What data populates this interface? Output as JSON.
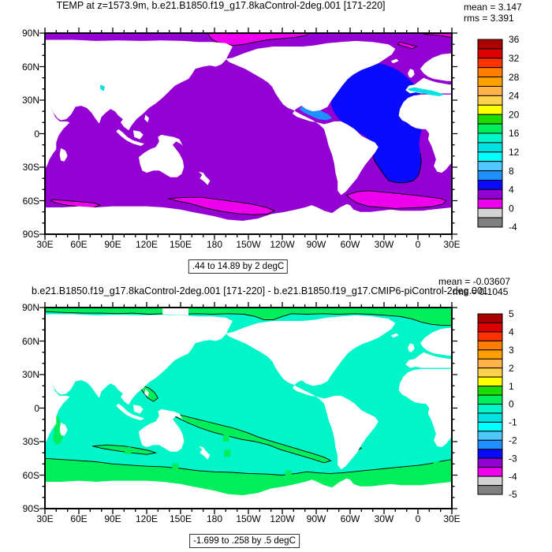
{
  "palette": [
    "#AA0000",
    "#DE0000",
    "#FF3200",
    "#FF7D00",
    "#FFA000",
    "#FFB44B",
    "#FFD24B",
    "#FFFF00",
    "#1EDC00",
    "#00EE5A",
    "#00F5C8",
    "#00E1E1",
    "#00FFFF",
    "#50C8FF",
    "#1E90FF",
    "#0A0AFF",
    "#9400D3",
    "#EE00EE",
    "#D3D3D3",
    "#808080"
  ],
  "panels": {
    "top": {
      "title": "TEMP at z=1573.9m, b.e21.B1850.f19_g17.8kaControl-2deg.001 [171-220]",
      "mean_label": "mean = 3.147",
      "rms_label": "rms = 3.391",
      "caption": ".44 to 14.89 by 2 degC",
      "x_tick_labels": [
        "30E",
        "60E",
        "90E",
        "120E",
        "150E",
        "180",
        "150W",
        "120W",
        "90W",
        "60W",
        "30W",
        "0",
        "30E"
      ],
      "y_tick_labels": [
        "90N",
        "60N",
        "30N",
        "0",
        "30S",
        "60S",
        "90S"
      ],
      "colorbar_labels": [
        "36",
        "32",
        "28",
        "24",
        "20",
        "16",
        "12",
        "8",
        "4",
        "0",
        "-4"
      ]
    },
    "bottom": {
      "title": "b.e21.B1850.f19_g17.8kaControl-2deg.001 [171-220] - b.e21.B1850.f19_g17.CMIP6-piControl-2deg.001",
      "mean_label": "mean = -0.03607",
      "rms_label": "rms = 0.1045",
      "caption": "-1.699 to .258 by .5 degC",
      "contour_label": "0",
      "x_tick_labels": [
        "30E",
        "60E",
        "90E",
        "120E",
        "150E",
        "180",
        "150W",
        "120W",
        "90W",
        "60W",
        "30W",
        "0",
        "30E"
      ],
      "y_tick_labels": [
        "90N",
        "60N",
        "30N",
        "0",
        "30S",
        "60S",
        "90S"
      ],
      "colorbar_labels": [
        "5",
        "4",
        "3",
        "2",
        "1",
        "0",
        "-1",
        "-2",
        "-3",
        "-4",
        "-5"
      ]
    }
  },
  "chart_data": [
    {
      "type": "heatmap",
      "subtype": "filled-contour-world-map",
      "title": "TEMP at z=1573.9m, b.e21.B1850.f19_g17.8kaControl-2deg.001 [171-220]",
      "units": "degC",
      "mean": 3.147,
      "rms": 3.391,
      "data_min": 0.44,
      "data_max": 14.89,
      "contour_interval": 2,
      "colorbar_levels": {
        "min": -4,
        "max": 36,
        "step": 2
      },
      "colorbar_tick_labels": [
        36,
        32,
        28,
        24,
        20,
        16,
        12,
        8,
        4,
        0,
        -4
      ],
      "x_ticks": [
        "30E",
        "60E",
        "90E",
        "120E",
        "150E",
        "180",
        "150W",
        "120W",
        "90W",
        "60W",
        "30W",
        "0",
        "30E"
      ],
      "y_ticks": [
        "90N",
        "60N",
        "30N",
        "0",
        "30S",
        "60S",
        "90S"
      ],
      "legend_position": "right",
      "notes": "Ocean mostly in 2-4 degC violet band; North Atlantic 4-6 degC blue; Gulf of Mexico/Caribbean 6-8 degC; Mediterranean 12-14 degC; magenta 0-2 degC bands in Southern Ocean and central Arctic"
    },
    {
      "type": "heatmap",
      "subtype": "filled-contour-world-map-difference",
      "title": "b.e21.B1850.f19_g17.8kaControl-2deg.001 [171-220] - b.e21.B1850.f19_g17.CMIP6-piControl-2deg.001",
      "units": "degC",
      "mean": -0.03607,
      "rms": 0.1045,
      "data_min": -1.699,
      "data_max": 0.258,
      "contour_interval": 0.5,
      "colorbar_levels": {
        "min": -5,
        "max": 5,
        "step": 0.5
      },
      "colorbar_tick_labels": [
        5,
        4,
        3,
        2,
        1,
        0,
        -1,
        -2,
        -3,
        -4,
        -5
      ],
      "x_ticks": [
        "30E",
        "60E",
        "90E",
        "120E",
        "150E",
        "180",
        "150W",
        "120W",
        "90W",
        "60W",
        "30W",
        "0",
        "30E"
      ],
      "y_ticks": [
        "90N",
        "60N",
        "30N",
        "0",
        "30S",
        "60S",
        "90S"
      ],
      "legend_position": "right",
      "zero_contour_labels": 6,
      "notes": "Ocean mostly -0.5 to 0 degC aqua; 0 to 0.5 degC green bands around Antarctica, Arctic, SW Pacific and south Indian Ocean with labeled 0 contours"
    }
  ]
}
